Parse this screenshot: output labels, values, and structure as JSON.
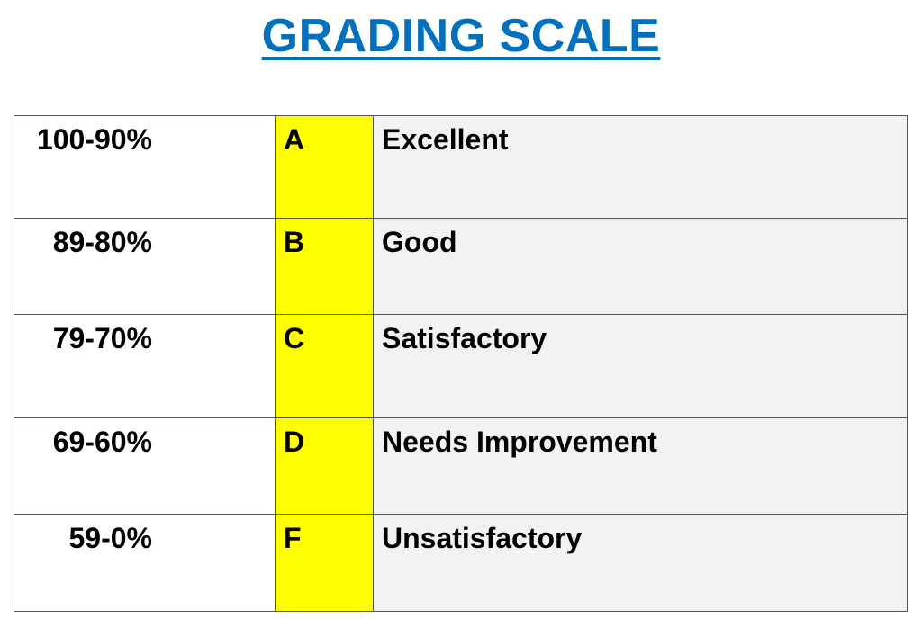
{
  "title": "GRADING SCALE",
  "colors": {
    "title": "#0070C0",
    "letter_fill": "#FFFF00",
    "description_fill": "#F2F2F2",
    "range_fill": "#FFFFFF"
  },
  "grades": [
    {
      "range": "100-90%",
      "letter": "A",
      "description": "Excellent"
    },
    {
      "range": "89-80%",
      "letter": "B",
      "description": "Good"
    },
    {
      "range": "79-70%",
      "letter": "C",
      "description": "Satisfactory"
    },
    {
      "range": "69-60%",
      "letter": "D",
      "description": "Needs Improvement"
    },
    {
      "range": "59-0%",
      "letter": "F",
      "description": "Unsatisfactory"
    }
  ]
}
